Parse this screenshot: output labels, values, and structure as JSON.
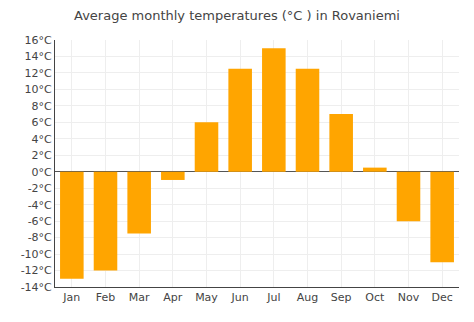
{
  "chart_data": {
    "type": "bar",
    "title": "Average monthly temperatures (°C ) in Rovaniemi",
    "categories": [
      "Jan",
      "Feb",
      "Mar",
      "Apr",
      "May",
      "Jun",
      "Jul",
      "Aug",
      "Sep",
      "Oct",
      "Nov",
      "Dec"
    ],
    "values": [
      -13,
      -12,
      -7.5,
      -1,
      6,
      12.5,
      15,
      12.5,
      7,
      0.5,
      -6,
      -11
    ],
    "color": "#FFA500",
    "ylim": [
      -14,
      16
    ],
    "yticks": [
      {
        "value": -14,
        "label": "-14°C"
      },
      {
        "value": -12,
        "label": "-12°C"
      },
      {
        "value": -10,
        "label": "-10°C"
      },
      {
        "value": -8,
        "label": "-8°C"
      },
      {
        "value": -6,
        "label": "-6°C"
      },
      {
        "value": -4,
        "label": "-4°C"
      },
      {
        "value": -2,
        "label": "-2°C"
      },
      {
        "value": 0,
        "label": "0°C"
      },
      {
        "value": 2,
        "label": "2°C"
      },
      {
        "value": 4,
        "label": "4°C"
      },
      {
        "value": 6,
        "label": "6°C"
      },
      {
        "value": 8,
        "label": "8°C"
      },
      {
        "value": 10,
        "label": "10°C"
      },
      {
        "value": 12,
        "label": "12°C"
      },
      {
        "value": 14,
        "label": "14°C"
      },
      {
        "value": 16,
        "label": "16°C"
      }
    ],
    "grid": true
  }
}
